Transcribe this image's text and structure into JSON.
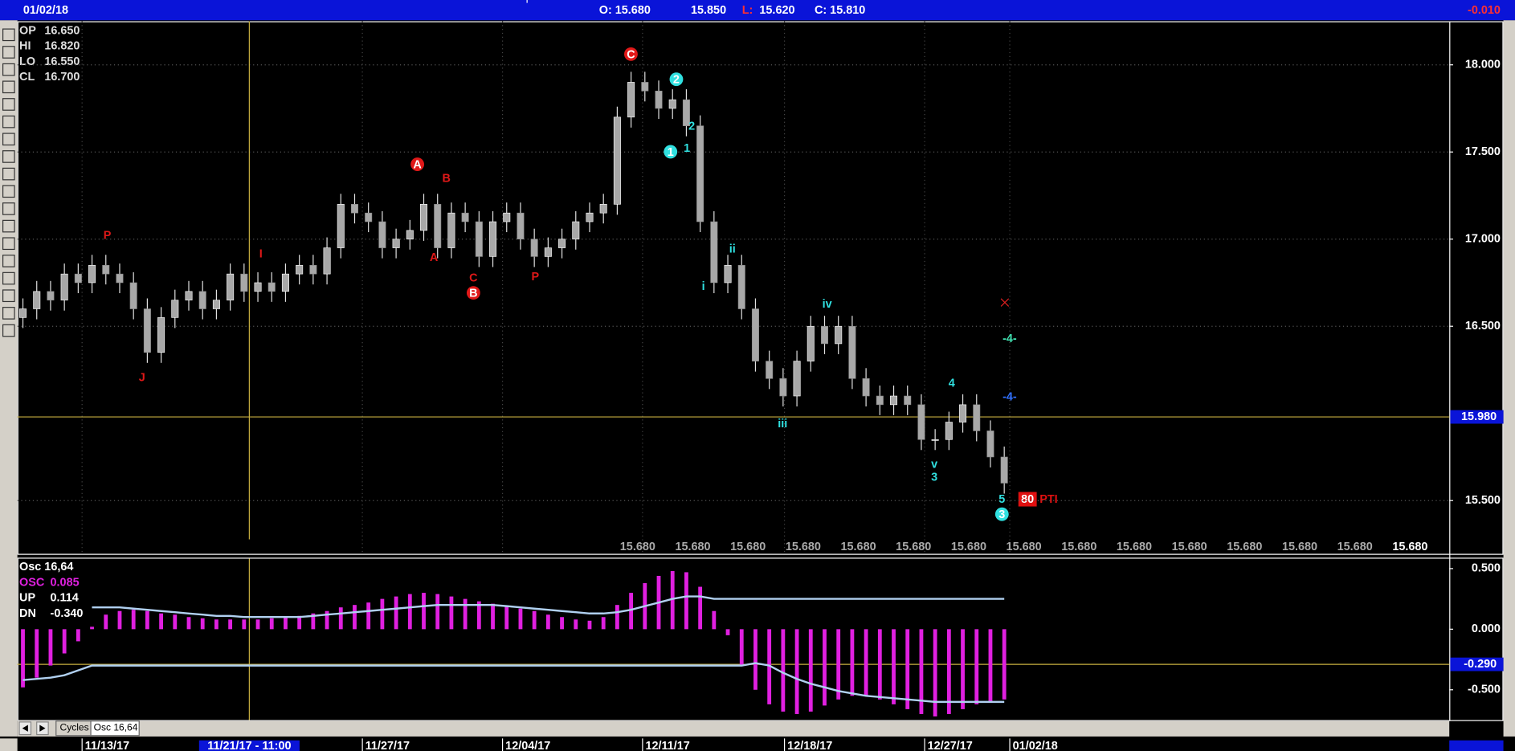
{
  "header": {
    "date": "01/02/18",
    "open": "O: 15.680",
    "high": "15.850",
    "low_label": "L:",
    "low": "15.620",
    "close": "C: 15.810",
    "change": "-0.010"
  },
  "ohlc_box": [
    [
      "OP",
      "16.650"
    ],
    [
      "HI",
      "16.820"
    ],
    [
      "LO",
      "16.550"
    ],
    [
      "CL",
      "16.700"
    ]
  ],
  "osc_legend": {
    "title": "Osc 16,64",
    "rows": [
      [
        "OSC",
        "0.085"
      ],
      [
        "UP",
        "0.114"
      ],
      [
        "DN",
        "-0.340"
      ]
    ]
  },
  "price_row": [
    "15.680",
    "15.680",
    "15.680",
    "15.680",
    "15.680",
    "15.680",
    "15.680",
    "15.680",
    "15.680",
    "15.680",
    "15.680",
    "15.680",
    "15.680",
    "15.680",
    "15.680"
  ],
  "red_labels": [
    "P",
    "J",
    "I",
    "A",
    "B",
    "A",
    "C",
    "B",
    "P",
    "C"
  ],
  "cyan_labels": [
    "2",
    "1",
    "2",
    "1",
    "ii",
    "i",
    "iv",
    "iii",
    "4",
    "v",
    "3",
    "5",
    "3"
  ],
  "markers": [
    "-4-",
    "-4-"
  ],
  "pti": {
    "count": "80",
    "label": "PTI"
  },
  "tabs": [
    "Cycles",
    "Osc 16,64"
  ],
  "chart_data": [
    {
      "type": "candlestick",
      "color": "#a8a8a8",
      "grid": true,
      "open": [
        16.55,
        16.6,
        16.7,
        16.65,
        16.8,
        16.75,
        16.85,
        16.8,
        16.75,
        16.6,
        16.35,
        16.55,
        16.65,
        16.7,
        16.6,
        16.65,
        16.8,
        16.7,
        16.75,
        16.7,
        16.8,
        16.85,
        16.8,
        16.95,
        17.2,
        17.15,
        17.1,
        16.95,
        17.0,
        17.05,
        17.2,
        16.95,
        17.15,
        17.1,
        16.9,
        17.1,
        17.15,
        17.0,
        16.9,
        16.95,
        17.0,
        17.1,
        17.15,
        17.2,
        17.7,
        17.9,
        17.85,
        17.75,
        17.8,
        17.65,
        17.1,
        16.75,
        16.85,
        16.6,
        16.3,
        16.2,
        16.1,
        16.3,
        16.5,
        16.4,
        16.5,
        16.2,
        16.1,
        16.05,
        16.1,
        16.05,
        15.85,
        15.85,
        15.95,
        16.05,
        15.9,
        15.75
      ],
      "high": [
        16.66,
        16.76,
        16.76,
        16.86,
        16.86,
        16.91,
        16.91,
        16.86,
        16.81,
        16.66,
        16.61,
        16.71,
        16.76,
        16.76,
        16.71,
        16.86,
        16.86,
        16.81,
        16.81,
        16.86,
        16.91,
        16.91,
        17.01,
        17.26,
        17.26,
        17.21,
        17.16,
        17.06,
        17.11,
        17.26,
        17.26,
        17.21,
        17.21,
        17.16,
        17.16,
        17.21,
        17.21,
        17.06,
        17.01,
        17.06,
        17.16,
        17.21,
        17.26,
        17.76,
        17.96,
        17.96,
        17.91,
        17.86,
        17.86,
        17.71,
        17.16,
        16.91,
        16.91,
        16.66,
        16.36,
        16.26,
        16.36,
        16.56,
        16.56,
        16.56,
        16.56,
        16.26,
        16.16,
        16.16,
        16.16,
        16.11,
        15.91,
        16.01,
        16.11,
        16.11,
        15.96,
        15.81
      ],
      "low": [
        16.49,
        16.54,
        16.59,
        16.59,
        16.69,
        16.69,
        16.74,
        16.69,
        16.54,
        16.29,
        16.29,
        16.49,
        16.59,
        16.54,
        16.54,
        16.59,
        16.64,
        16.64,
        16.64,
        16.64,
        16.74,
        16.74,
        16.74,
        16.89,
        17.09,
        17.04,
        16.89,
        16.89,
        16.94,
        16.99,
        16.89,
        16.89,
        17.04,
        16.84,
        16.84,
        17.04,
        16.94,
        16.84,
        16.84,
        16.89,
        16.94,
        17.04,
        17.09,
        17.14,
        17.64,
        17.79,
        17.69,
        17.69,
        17.59,
        17.04,
        16.69,
        16.69,
        16.54,
        16.24,
        16.14,
        16.04,
        16.04,
        16.24,
        16.34,
        16.34,
        16.14,
        16.04,
        15.99,
        15.99,
        15.99,
        15.79,
        15.79,
        15.79,
        15.89,
        15.84,
        15.69,
        15.54
      ],
      "close": [
        16.6,
        16.7,
        16.65,
        16.8,
        16.75,
        16.85,
        16.8,
        16.75,
        16.6,
        16.35,
        16.55,
        16.65,
        16.7,
        16.6,
        16.65,
        16.8,
        16.7,
        16.75,
        16.7,
        16.8,
        16.85,
        16.8,
        16.95,
        17.2,
        17.15,
        17.1,
        16.95,
        17.0,
        17.05,
        17.2,
        16.95,
        17.15,
        17.1,
        16.9,
        17.1,
        17.15,
        17.0,
        16.9,
        16.95,
        17.0,
        17.1,
        17.15,
        17.2,
        17.7,
        17.9,
        17.85,
        17.75,
        17.8,
        17.65,
        17.1,
        16.75,
        16.85,
        16.6,
        16.3,
        16.2,
        16.1,
        16.3,
        16.5,
        16.4,
        16.5,
        16.2,
        16.1,
        16.05,
        16.1,
        16.05,
        15.85,
        15.85,
        15.95,
        16.05,
        15.9,
        15.75,
        15.6
      ],
      "xlim": [
        -0.4,
        103.2
      ],
      "ylim": [
        15.2,
        18.25
      ],
      "yticks": [
        {
          "value": 15.5,
          "label": "15.500"
        },
        {
          "value": 16.5,
          "label": "16.500"
        },
        {
          "value": 17,
          "label": "17.000"
        },
        {
          "value": 17.5,
          "label": "17.500"
        },
        {
          "value": 18,
          "label": "18.000"
        }
      ],
      "xticks": [
        {
          "value": 4.28,
          "label": "11/13/17"
        },
        {
          "value": 16.38,
          "label": "11/21/17 - 11:00"
        },
        {
          "value": 24.56,
          "label": "11/27/17"
        },
        {
          "value": 34.7,
          "label": "12/04/17"
        },
        {
          "value": 44.83,
          "label": "12/11/17"
        },
        {
          "value": 55.1,
          "label": "12/18/17"
        },
        {
          "value": 65.24,
          "label": "12/27/17"
        },
        {
          "value": 71.4,
          "label": "01/02/18"
        }
      ],
      "crosshair_y": {
        "value": 15.98,
        "label": "15.980"
      }
    },
    {
      "type": "oscillator",
      "title": "Osc 16,64",
      "series": [
        {
          "name": "OSC",
          "color": "#e020e0",
          "values": [
            -0.48,
            -0.4,
            -0.3,
            -0.2,
            -0.1,
            0.02,
            0.12,
            0.15,
            0.16,
            0.15,
            0.13,
            0.12,
            0.1,
            0.09,
            0.08,
            0.08,
            0.08,
            0.08,
            0.09,
            0.1,
            0.11,
            0.13,
            0.15,
            0.18,
            0.2,
            0.22,
            0.25,
            0.27,
            0.29,
            0.3,
            0.29,
            0.27,
            0.25,
            0.23,
            0.21,
            0.19,
            0.17,
            0.15,
            0.12,
            0.1,
            0.08,
            0.07,
            0.1,
            0.2,
            0.3,
            0.38,
            0.44,
            0.48,
            0.47,
            0.35,
            0.15,
            -0.05,
            -0.3,
            -0.5,
            -0.62,
            -0.68,
            -0.7,
            -0.68,
            -0.63,
            -0.58,
            -0.55,
            -0.55,
            -0.58,
            -0.62,
            -0.66,
            -0.7,
            -0.72,
            -0.7,
            -0.66,
            -0.62,
            -0.6,
            -0.58
          ]
        },
        {
          "name": "UP",
          "color": "#b0d0f0",
          "values": [
            null,
            null,
            null,
            null,
            null,
            0.18,
            0.18,
            0.18,
            0.17,
            0.16,
            0.15,
            0.14,
            0.13,
            0.12,
            0.11,
            0.11,
            0.1,
            0.1,
            0.1,
            0.1,
            0.1,
            0.11,
            0.12,
            0.13,
            0.14,
            0.15,
            0.16,
            0.17,
            0.18,
            0.19,
            0.2,
            0.2,
            0.2,
            0.2,
            0.2,
            0.19,
            0.18,
            0.17,
            0.16,
            0.15,
            0.14,
            0.13,
            0.13,
            0.14,
            0.16,
            0.19,
            0.22,
            0.25,
            0.27,
            0.27,
            0.25,
            0.25,
            0.25,
            0.25,
            0.25,
            0.25,
            0.25,
            0.25,
            0.25,
            0.25,
            0.25,
            0.25,
            0.25,
            0.25,
            0.25,
            0.25,
            0.25,
            0.25,
            0.25,
            0.25,
            0.25,
            0.25
          ]
        },
        {
          "name": "DN",
          "color": "#b0d0f0",
          "values": [
            -0.42,
            -0.41,
            -0.4,
            -0.38,
            -0.34,
            -0.3,
            -0.3,
            -0.3,
            -0.3,
            -0.3,
            -0.3,
            -0.3,
            -0.3,
            -0.3,
            -0.3,
            -0.3,
            -0.3,
            -0.3,
            -0.3,
            -0.3,
            -0.3,
            -0.3,
            -0.3,
            -0.3,
            -0.3,
            -0.3,
            -0.3,
            -0.3,
            -0.3,
            -0.3,
            -0.3,
            -0.3,
            -0.3,
            -0.3,
            -0.3,
            -0.3,
            -0.3,
            -0.3,
            -0.3,
            -0.3,
            -0.3,
            -0.3,
            -0.3,
            -0.3,
            -0.3,
            -0.3,
            -0.3,
            -0.3,
            -0.3,
            -0.3,
            -0.3,
            -0.3,
            -0.3,
            -0.28,
            -0.3,
            -0.36,
            -0.41,
            -0.45,
            -0.48,
            -0.51,
            -0.53,
            -0.55,
            -0.56,
            -0.57,
            -0.58,
            -0.59,
            -0.6,
            -0.6,
            -0.6,
            -0.6,
            -0.6,
            -0.6
          ]
        }
      ],
      "xlim": [
        -0.4,
        103.2
      ],
      "ylim": [
        -0.75,
        0.59
      ],
      "yticks": [
        {
          "value": -0.5,
          "label": "-0.500"
        },
        {
          "value": 0,
          "label": "0.000"
        },
        {
          "value": 0.5,
          "label": "0.500"
        }
      ],
      "level": {
        "value": -0.29,
        "label": "-0.290"
      }
    }
  ]
}
